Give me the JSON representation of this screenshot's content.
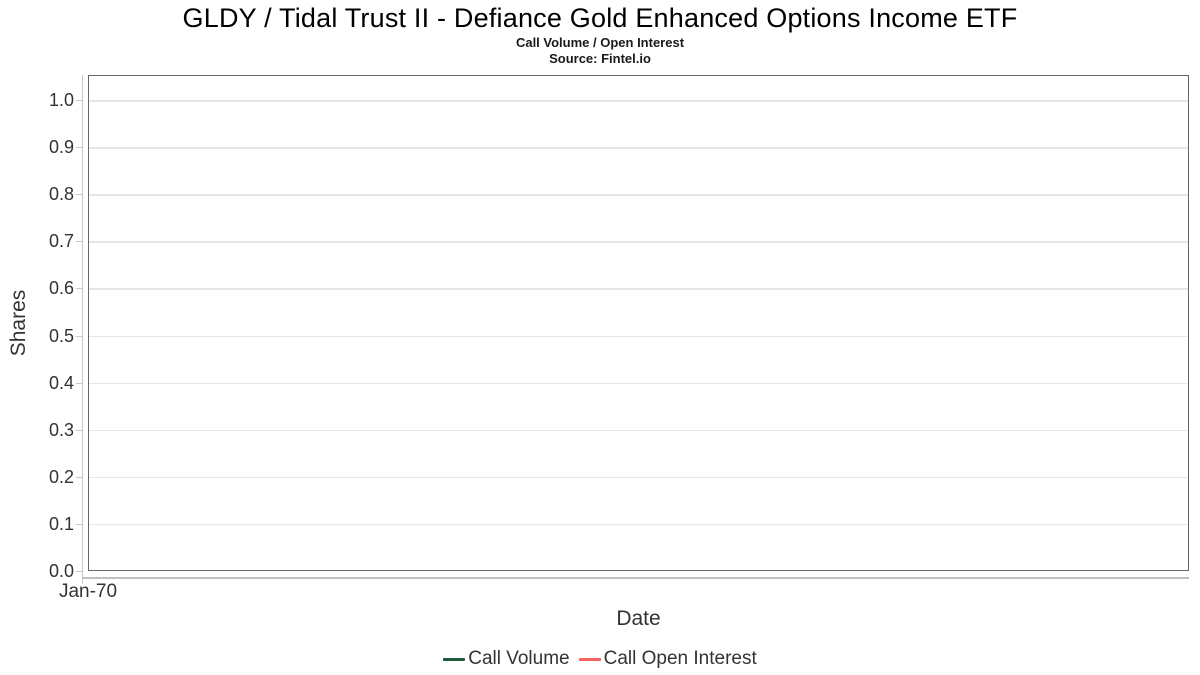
{
  "chart_data": {
    "type": "line",
    "title": "GLDY / Tidal Trust II - Defiance Gold Enhanced Options Income ETF",
    "subtitle": "Call Volume / Open Interest",
    "source": "Source: Fintel.io",
    "xlabel": "Date",
    "ylabel": "Shares",
    "x_tick_labels": [
      "Jan-70"
    ],
    "y_ticks": [
      0.0,
      0.1,
      0.2,
      0.3,
      0.4,
      0.5,
      0.6,
      0.7,
      0.8,
      0.9,
      1.0
    ],
    "ylim": [
      0.0,
      1.05
    ],
    "grid": true,
    "legend_position": "bottom",
    "plot_border_color": "#666666",
    "gridline_color": "#e6e6e6",
    "series": [
      {
        "name": "Call Volume",
        "color": "#1d5c39",
        "x": [],
        "values": []
      },
      {
        "name": "Call Open Interest",
        "color": "#f8625f",
        "x": [],
        "values": []
      }
    ]
  }
}
